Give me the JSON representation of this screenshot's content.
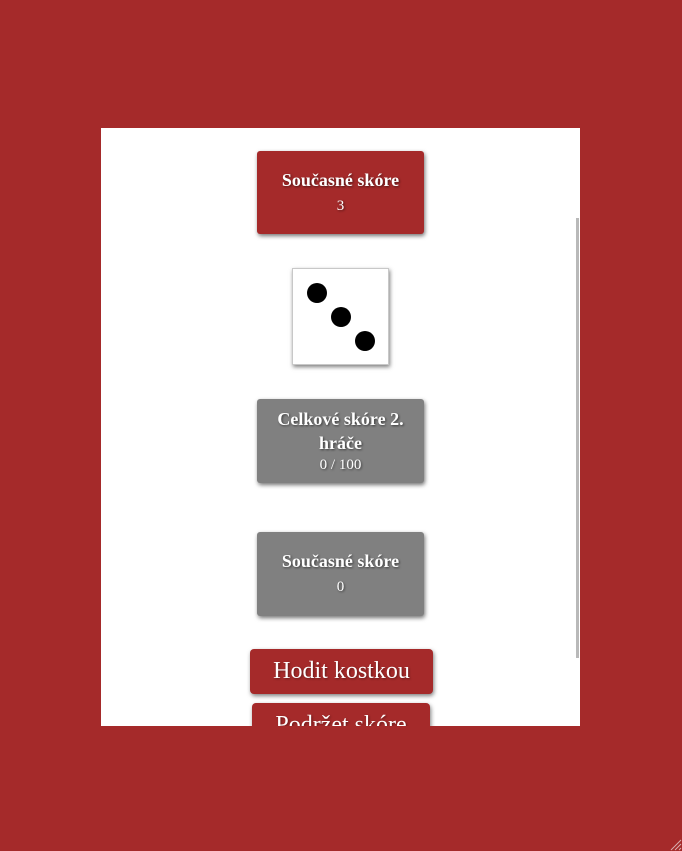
{
  "player1": {
    "current_label": "Současné skóre",
    "current_value": "3"
  },
  "die": {
    "value": 3,
    "icon": "die-face-three-icon"
  },
  "player2": {
    "total_label": "Celkové skóre 2. hráče",
    "total_value": "0 / 100",
    "current_label": "Současné skóre",
    "current_value": "0"
  },
  "actions": {
    "roll_label": "Hodit kostkou",
    "hold_label": "Podržet skóre"
  },
  "colors": {
    "background": "#a52a2a",
    "panel": "#ffffff",
    "active_card": "#a52a2a",
    "inactive_card": "#808080"
  }
}
